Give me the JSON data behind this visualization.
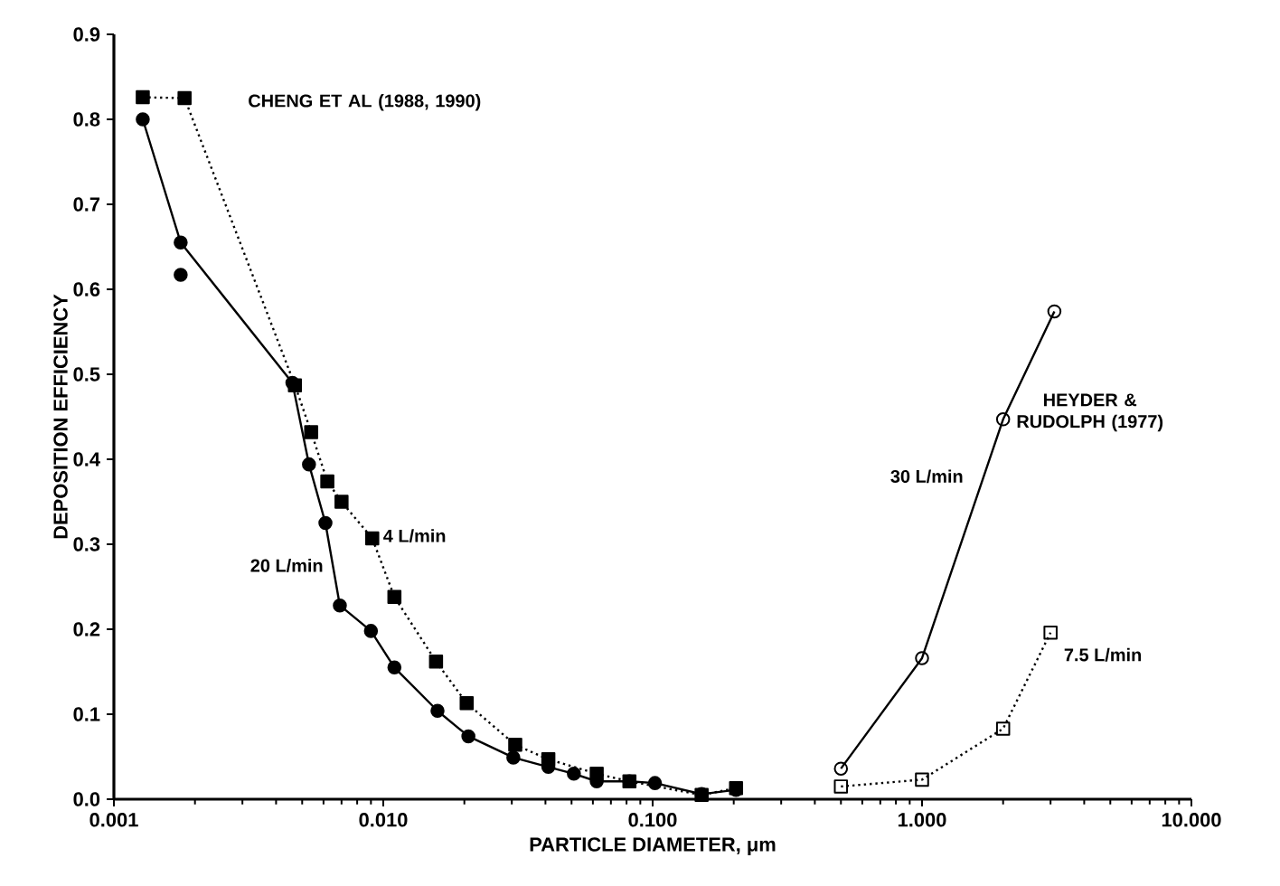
{
  "chart_data": {
    "type": "line",
    "xlabel": "PARTICLE DIAMETER, μm",
    "ylabel": "DEPOSITION EFFICIENCY",
    "log": "x",
    "xlim": [
      0.001,
      10
    ],
    "xticks": [
      {
        "value": 0.001,
        "label": "0.001"
      },
      {
        "value": 0.01,
        "label": "0.010"
      },
      {
        "value": 0.1,
        "label": "0.100"
      },
      {
        "value": 1,
        "label": "1.000"
      },
      {
        "value": 10,
        "label": "10.000"
      }
    ],
    "ylim": [
      0,
      0.9
    ],
    "yticks": [
      {
        "value": 0,
        "label": "0.0"
      },
      {
        "value": 0.1,
        "label": "0.1"
      },
      {
        "value": 0.2,
        "label": "0.2"
      },
      {
        "value": 0.3,
        "label": "0.3"
      },
      {
        "value": 0.4,
        "label": "0.4"
      },
      {
        "value": 0.5,
        "label": "0.5"
      },
      {
        "value": 0.6,
        "label": "0.6"
      },
      {
        "value": 0.7,
        "label": "0.7"
      },
      {
        "value": 0.8,
        "label": "0.8"
      },
      {
        "value": 0.9,
        "label": "0.9"
      }
    ],
    "annotations": [
      "CHENG ET AL  (1988, 1990)",
      "HEYDER & RUDOLPH (1977)"
    ],
    "series": [
      {
        "name": "20 L/min",
        "color": "#000000",
        "marker": "circle",
        "line_style": "solid",
        "x": [
          0.00128,
          0.00177,
          0.0046,
          0.0053,
          0.0061,
          0.0069,
          0.009,
          0.011,
          0.0159,
          0.0207,
          0.0304,
          0.041,
          0.051,
          0.062,
          0.082,
          0.102,
          0.152,
          0.204
        ],
        "values": [
          0.8,
          0.655,
          0.49,
          0.394,
          0.325,
          0.228,
          0.198,
          0.155,
          0.104,
          0.074,
          0.049,
          0.038,
          0.03,
          0.021,
          0.021,
          0.019,
          0.006,
          0.011
        ]
      },
      {
        "name": "4 L/min",
        "color": "#000000",
        "marker": "square",
        "line_style": "dotted",
        "x": [
          0.00128,
          0.00183,
          0.0047,
          0.0054,
          0.0062,
          0.007,
          0.0091,
          0.011,
          0.0157,
          0.0204,
          0.0309,
          0.041,
          0.062,
          0.082,
          0.152,
          0.204
        ],
        "values": [
          0.826,
          0.825,
          0.487,
          0.432,
          0.374,
          0.35,
          0.307,
          0.238,
          0.162,
          0.113,
          0.064,
          0.047,
          0.03,
          0.021,
          0.005,
          0.013
        ]
      },
      {
        "type": "scatter",
        "color": "#000000",
        "marker": "circle",
        "x": [
          0.00177
        ],
        "values": [
          0.617
        ]
      },
      {
        "name": "30 L/min",
        "color": "#000000",
        "marker": "circle",
        "line_style": "solid",
        "x": [
          0.5,
          1.0,
          2.0,
          3.1
        ],
        "values": [
          0.036,
          0.166,
          0.447,
          0.574
        ]
      },
      {
        "name": "7.5 L/min",
        "color": "#000000",
        "marker": "square",
        "line_style": "dotted",
        "x": [
          0.5,
          1.0,
          2.0,
          3.0
        ],
        "values": [
          0.015,
          0.023,
          0.083,
          0.196
        ]
      }
    ]
  }
}
